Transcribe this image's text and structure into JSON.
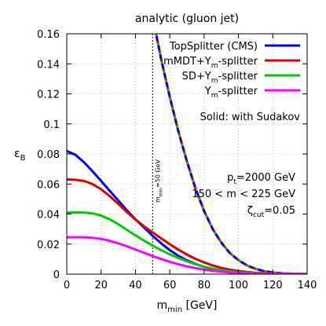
{
  "chart_data": {
    "type": "line",
    "title": "analytic (gluon jet)",
    "xlabel": {
      "main": "m",
      "sub": "min",
      "unit": " [GeV]"
    },
    "ylabel": {
      "main": "ε",
      "sub": "B"
    },
    "xlim": [
      0,
      140
    ],
    "ylim": [
      0,
      0.16
    ],
    "x_ticks": [
      0,
      20,
      40,
      60,
      80,
      100,
      120,
      140
    ],
    "y_ticks": [
      0,
      0.02,
      0.04,
      0.06,
      0.08,
      0.1,
      0.12,
      0.14,
      0.16
    ],
    "x_tick_labels": [
      "0",
      "20",
      "40",
      "60",
      "80",
      "100",
      "120",
      "140"
    ],
    "y_tick_labels": [
      "0",
      "0.02",
      "0.04",
      "0.06",
      "0.08",
      "0.1",
      "0.12",
      "0.14",
      "0.16"
    ],
    "grid": "dotted",
    "legend_position": "top-right",
    "vline": {
      "x": 50,
      "label": {
        "main": "m",
        "sub": "min",
        "tail": "=50 GeV"
      }
    },
    "legend_note": "Solid: with Sudakov",
    "annotations": [
      {
        "parts": [
          {
            "t": "p"
          },
          {
            "t": "t",
            "sub": true
          },
          {
            "t": "=2000 GeV"
          }
        ]
      },
      {
        "parts": [
          {
            "t": "150 < m < 225 GeV"
          }
        ]
      },
      {
        "parts": [
          {
            "t": "ζ"
          },
          {
            "t": "cut",
            "sub": true
          },
          {
            "t": "=0.05"
          }
        ]
      }
    ],
    "series": [
      {
        "name": "TopSplitter (CMS)",
        "name_parts": [
          {
            "t": "TopSplitter (CMS)"
          }
        ],
        "color": "#0000ee",
        "x": [
          0,
          5,
          10,
          15,
          20,
          25,
          30,
          35,
          40,
          45,
          50,
          55,
          60,
          65,
          70,
          75,
          80,
          85,
          90,
          95,
          100,
          105,
          110,
          115,
          120,
          125,
          130,
          135,
          140
        ],
        "values": [
          0.082,
          0.0795,
          0.0745,
          0.0685,
          0.062,
          0.0555,
          0.049,
          0.0425,
          0.0365,
          0.031,
          0.0255,
          0.0205,
          0.016,
          0.0122,
          0.0092,
          0.0068,
          0.0048,
          0.0033,
          0.0022,
          0.0014,
          0.0009,
          0.0006,
          0.0004,
          0.0003,
          0.0002,
          0.00015,
          0.0001,
          5e-05,
          3e-05
        ]
      },
      {
        "name": "mMDT+Ym-splitter",
        "name_parts": [
          {
            "t": "mMDT+Y"
          },
          {
            "t": "m",
            "sub": true
          },
          {
            "t": "-splitter"
          }
        ],
        "color": "#dd0000",
        "x": [
          0,
          5,
          10,
          15,
          20,
          25,
          30,
          35,
          40,
          45,
          50,
          55,
          60,
          65,
          70,
          75,
          80,
          85,
          90,
          95,
          100,
          105,
          110,
          115,
          120,
          125,
          130,
          135,
          140
        ],
        "values": [
          0.063,
          0.0628,
          0.062,
          0.06,
          0.0565,
          0.052,
          0.0468,
          0.0413,
          0.0363,
          0.0318,
          0.0278,
          0.0238,
          0.02,
          0.0163,
          0.013,
          0.0102,
          0.0078,
          0.0058,
          0.0042,
          0.003,
          0.0021,
          0.0014,
          0.0009,
          0.0006,
          0.0004,
          0.0003,
          0.0002,
          0.0001,
          5e-05
        ]
      },
      {
        "name": "SD+Ym-splitter",
        "name_parts": [
          {
            "t": "SD+Y"
          },
          {
            "t": "m",
            "sub": true
          },
          {
            "t": "-splitter"
          }
        ],
        "color": "#00cc00",
        "x": [
          0,
          5,
          10,
          15,
          20,
          25,
          30,
          35,
          40,
          45,
          50,
          55,
          60,
          65,
          70,
          75,
          80,
          85,
          90,
          95,
          100,
          105,
          110,
          115,
          120,
          125,
          130,
          135,
          140
        ],
        "values": [
          0.041,
          0.0411,
          0.041,
          0.0404,
          0.039,
          0.0365,
          0.0332,
          0.0295,
          0.0258,
          0.0223,
          0.019,
          0.016,
          0.0132,
          0.0107,
          0.0085,
          0.0066,
          0.005,
          0.0037,
          0.0027,
          0.0019,
          0.0013,
          0.0009,
          0.0006,
          0.0004,
          0.0003,
          0.0002,
          0.00012,
          8e-05,
          4e-05
        ]
      },
      {
        "name": "Ym-splitter",
        "name_parts": [
          {
            "t": "Y"
          },
          {
            "t": "m",
            "sub": true
          },
          {
            "t": "-splitter"
          }
        ],
        "color": "#ff00ff",
        "x": [
          0,
          5,
          10,
          15,
          20,
          25,
          30,
          35,
          40,
          45,
          50,
          55,
          60,
          65,
          70,
          75,
          80,
          85,
          90,
          95,
          100,
          105,
          110,
          115,
          120,
          125,
          130,
          135,
          140
        ],
        "values": [
          0.0245,
          0.0246,
          0.0245,
          0.0242,
          0.0235,
          0.0222,
          0.0205,
          0.0185,
          0.0164,
          0.0142,
          0.0121,
          0.0101,
          0.0082,
          0.0066,
          0.0052,
          0.004,
          0.003,
          0.0022,
          0.0016,
          0.0011,
          0.0008,
          0.0005,
          0.0003,
          0.0002,
          0.00015,
          0.0001,
          6e-05,
          3e-05,
          2e-05
        ]
      }
    ],
    "dashed_series": [
      {
        "color": "#ff00ff",
        "x": [
          52,
          55,
          60,
          65,
          70,
          75,
          80,
          85,
          90,
          95,
          100,
          105,
          110,
          115,
          120,
          125,
          130,
          135,
          140
        ],
        "values": [
          0.16,
          0.143,
          0.118,
          0.095,
          0.075,
          0.057,
          0.042,
          0.03,
          0.021,
          0.014,
          0.0093,
          0.0058,
          0.0035,
          0.002,
          0.0011,
          0.0006,
          0.0003,
          0.00015,
          8e-05
        ]
      },
      {
        "color": "#00cc00",
        "x": [
          52,
          55,
          60,
          65,
          70,
          75,
          80,
          85,
          90,
          95,
          100,
          105,
          110,
          115,
          120,
          125,
          130,
          135,
          140
        ],
        "values": [
          0.16,
          0.143,
          0.118,
          0.095,
          0.075,
          0.057,
          0.042,
          0.03,
          0.021,
          0.014,
          0.0093,
          0.0058,
          0.0035,
          0.002,
          0.0011,
          0.0006,
          0.0003,
          0.00015,
          8e-05
        ]
      },
      {
        "color": "#dd0000",
        "x": [
          52,
          55,
          60,
          65,
          70,
          75,
          80,
          85,
          90,
          95,
          100,
          105,
          110,
          115,
          120,
          125,
          130,
          135,
          140
        ],
        "values": [
          0.16,
          0.143,
          0.118,
          0.095,
          0.075,
          0.057,
          0.042,
          0.03,
          0.021,
          0.014,
          0.0093,
          0.0058,
          0.0035,
          0.002,
          0.0011,
          0.0006,
          0.0003,
          0.00015,
          8e-05
        ]
      },
      {
        "color": "#0000ee",
        "x": [
          52,
          55,
          60,
          65,
          70,
          75,
          80,
          85,
          90,
          95,
          100,
          105,
          110,
          115,
          120,
          125,
          130,
          135,
          140
        ],
        "values": [
          0.16,
          0.143,
          0.118,
          0.095,
          0.075,
          0.057,
          0.042,
          0.03,
          0.021,
          0.014,
          0.0093,
          0.0058,
          0.0035,
          0.002,
          0.0011,
          0.0006,
          0.0003,
          0.00015,
          8e-05
        ]
      }
    ]
  }
}
